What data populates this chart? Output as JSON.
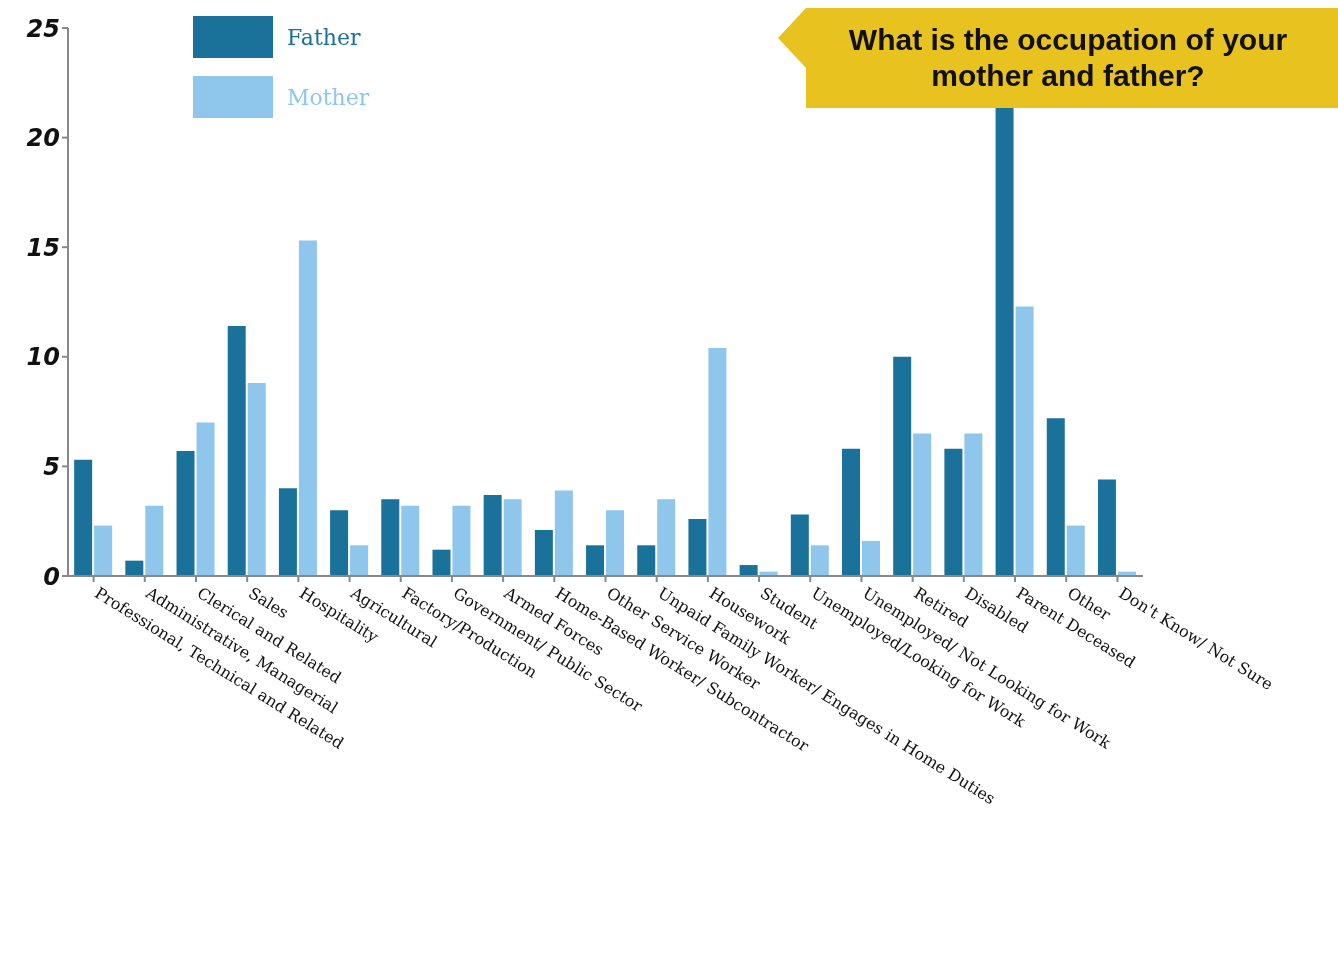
{
  "chart_data": {
    "type": "bar",
    "title": "What is the occupation of your mother and father?",
    "categories": [
      "Professional, Technical and Related",
      "Administrative, Managerial",
      "Clerical and Related",
      "Sales",
      "Hospitality",
      "Agricultural",
      "Factory/Production",
      "Government/ Public Sector",
      "Armed Forces",
      "Home-Based Worker/ Subcontractor",
      "Other Service Worker",
      "Unpaid Family Worker/ Engages in Home Duties",
      "Housework",
      "Student",
      "Unemployed/Looking for Work",
      "Unemployed/ Not Looking for Work",
      "Retired",
      "Disabled",
      "Parent Deceased",
      "Other",
      "Don't Know/ Not Sure"
    ],
    "series": [
      {
        "name": "Father",
        "color": "#1a7199",
        "values": [
          5.3,
          0.7,
          5.7,
          11.4,
          4.0,
          3.0,
          3.5,
          1.2,
          3.7,
          2.1,
          1.4,
          1.4,
          2.6,
          0.5,
          2.8,
          5.8,
          10.0,
          5.8,
          21.4,
          7.2,
          4.4
        ]
      },
      {
        "name": "Mother",
        "color": "#8ec6ec",
        "values": [
          2.3,
          3.2,
          7.0,
          8.8,
          15.3,
          1.4,
          3.2,
          3.2,
          3.5,
          3.9,
          3.0,
          3.5,
          10.4,
          0.2,
          1.4,
          1.6,
          6.5,
          6.5,
          12.3,
          2.3,
          0.2
        ]
      }
    ],
    "ylim": [
      0,
      25
    ],
    "yticks": [
      0,
      5,
      10,
      15,
      20,
      25
    ],
    "grid": false,
    "legend": "top left"
  }
}
